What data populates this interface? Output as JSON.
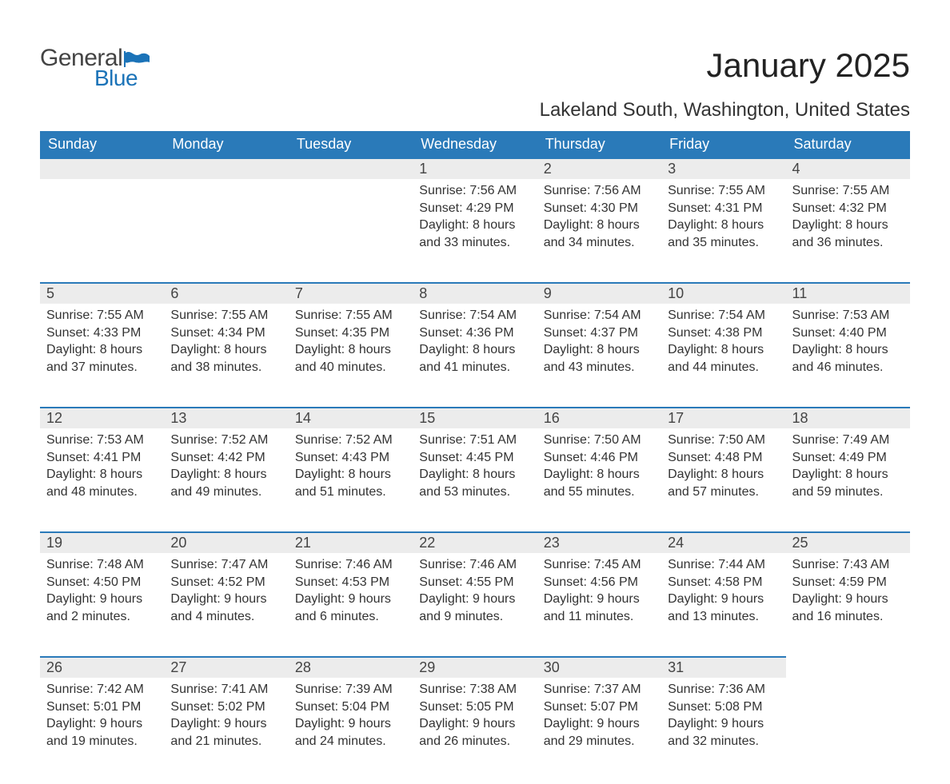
{
  "brand": {
    "word1": "General",
    "word2": "Blue",
    "flag_color": "#1b73b8"
  },
  "title": "January 2025",
  "location": "Lakeland South, Washington, United States",
  "colors": {
    "header_bg": "#2a7ab9",
    "header_text": "#ffffff",
    "daynum_bg": "#ececec",
    "daynum_border": "#2a7ab9",
    "body_text": "#333333",
    "page_bg": "#ffffff"
  },
  "day_headers": [
    "Sunday",
    "Monday",
    "Tuesday",
    "Wednesday",
    "Thursday",
    "Friday",
    "Saturday"
  ],
  "weeks": [
    [
      null,
      null,
      null,
      {
        "n": "1",
        "sunrise": "Sunrise: 7:56 AM",
        "sunset": "Sunset: 4:29 PM",
        "daylight": "Daylight: 8 hours and 33 minutes."
      },
      {
        "n": "2",
        "sunrise": "Sunrise: 7:56 AM",
        "sunset": "Sunset: 4:30 PM",
        "daylight": "Daylight: 8 hours and 34 minutes."
      },
      {
        "n": "3",
        "sunrise": "Sunrise: 7:55 AM",
        "sunset": "Sunset: 4:31 PM",
        "daylight": "Daylight: 8 hours and 35 minutes."
      },
      {
        "n": "4",
        "sunrise": "Sunrise: 7:55 AM",
        "sunset": "Sunset: 4:32 PM",
        "daylight": "Daylight: 8 hours and 36 minutes."
      }
    ],
    [
      {
        "n": "5",
        "sunrise": "Sunrise: 7:55 AM",
        "sunset": "Sunset: 4:33 PM",
        "daylight": "Daylight: 8 hours and 37 minutes."
      },
      {
        "n": "6",
        "sunrise": "Sunrise: 7:55 AM",
        "sunset": "Sunset: 4:34 PM",
        "daylight": "Daylight: 8 hours and 38 minutes."
      },
      {
        "n": "7",
        "sunrise": "Sunrise: 7:55 AM",
        "sunset": "Sunset: 4:35 PM",
        "daylight": "Daylight: 8 hours and 40 minutes."
      },
      {
        "n": "8",
        "sunrise": "Sunrise: 7:54 AM",
        "sunset": "Sunset: 4:36 PM",
        "daylight": "Daylight: 8 hours and 41 minutes."
      },
      {
        "n": "9",
        "sunrise": "Sunrise: 7:54 AM",
        "sunset": "Sunset: 4:37 PM",
        "daylight": "Daylight: 8 hours and 43 minutes."
      },
      {
        "n": "10",
        "sunrise": "Sunrise: 7:54 AM",
        "sunset": "Sunset: 4:38 PM",
        "daylight": "Daylight: 8 hours and 44 minutes."
      },
      {
        "n": "11",
        "sunrise": "Sunrise: 7:53 AM",
        "sunset": "Sunset: 4:40 PM",
        "daylight": "Daylight: 8 hours and 46 minutes."
      }
    ],
    [
      {
        "n": "12",
        "sunrise": "Sunrise: 7:53 AM",
        "sunset": "Sunset: 4:41 PM",
        "daylight": "Daylight: 8 hours and 48 minutes."
      },
      {
        "n": "13",
        "sunrise": "Sunrise: 7:52 AM",
        "sunset": "Sunset: 4:42 PM",
        "daylight": "Daylight: 8 hours and 49 minutes."
      },
      {
        "n": "14",
        "sunrise": "Sunrise: 7:52 AM",
        "sunset": "Sunset: 4:43 PM",
        "daylight": "Daylight: 8 hours and 51 minutes."
      },
      {
        "n": "15",
        "sunrise": "Sunrise: 7:51 AM",
        "sunset": "Sunset: 4:45 PM",
        "daylight": "Daylight: 8 hours and 53 minutes."
      },
      {
        "n": "16",
        "sunrise": "Sunrise: 7:50 AM",
        "sunset": "Sunset: 4:46 PM",
        "daylight": "Daylight: 8 hours and 55 minutes."
      },
      {
        "n": "17",
        "sunrise": "Sunrise: 7:50 AM",
        "sunset": "Sunset: 4:48 PM",
        "daylight": "Daylight: 8 hours and 57 minutes."
      },
      {
        "n": "18",
        "sunrise": "Sunrise: 7:49 AM",
        "sunset": "Sunset: 4:49 PM",
        "daylight": "Daylight: 8 hours and 59 minutes."
      }
    ],
    [
      {
        "n": "19",
        "sunrise": "Sunrise: 7:48 AM",
        "sunset": "Sunset: 4:50 PM",
        "daylight": "Daylight: 9 hours and 2 minutes."
      },
      {
        "n": "20",
        "sunrise": "Sunrise: 7:47 AM",
        "sunset": "Sunset: 4:52 PM",
        "daylight": "Daylight: 9 hours and 4 minutes."
      },
      {
        "n": "21",
        "sunrise": "Sunrise: 7:46 AM",
        "sunset": "Sunset: 4:53 PM",
        "daylight": "Daylight: 9 hours and 6 minutes."
      },
      {
        "n": "22",
        "sunrise": "Sunrise: 7:46 AM",
        "sunset": "Sunset: 4:55 PM",
        "daylight": "Daylight: 9 hours and 9 minutes."
      },
      {
        "n": "23",
        "sunrise": "Sunrise: 7:45 AM",
        "sunset": "Sunset: 4:56 PM",
        "daylight": "Daylight: 9 hours and 11 minutes."
      },
      {
        "n": "24",
        "sunrise": "Sunrise: 7:44 AM",
        "sunset": "Sunset: 4:58 PM",
        "daylight": "Daylight: 9 hours and 13 minutes."
      },
      {
        "n": "25",
        "sunrise": "Sunrise: 7:43 AM",
        "sunset": "Sunset: 4:59 PM",
        "daylight": "Daylight: 9 hours and 16 minutes."
      }
    ],
    [
      {
        "n": "26",
        "sunrise": "Sunrise: 7:42 AM",
        "sunset": "Sunset: 5:01 PM",
        "daylight": "Daylight: 9 hours and 19 minutes."
      },
      {
        "n": "27",
        "sunrise": "Sunrise: 7:41 AM",
        "sunset": "Sunset: 5:02 PM",
        "daylight": "Daylight: 9 hours and 21 minutes."
      },
      {
        "n": "28",
        "sunrise": "Sunrise: 7:39 AM",
        "sunset": "Sunset: 5:04 PM",
        "daylight": "Daylight: 9 hours and 24 minutes."
      },
      {
        "n": "29",
        "sunrise": "Sunrise: 7:38 AM",
        "sunset": "Sunset: 5:05 PM",
        "daylight": "Daylight: 9 hours and 26 minutes."
      },
      {
        "n": "30",
        "sunrise": "Sunrise: 7:37 AM",
        "sunset": "Sunset: 5:07 PM",
        "daylight": "Daylight: 9 hours and 29 minutes."
      },
      {
        "n": "31",
        "sunrise": "Sunrise: 7:36 AM",
        "sunset": "Sunset: 5:08 PM",
        "daylight": "Daylight: 9 hours and 32 minutes."
      },
      null
    ]
  ]
}
